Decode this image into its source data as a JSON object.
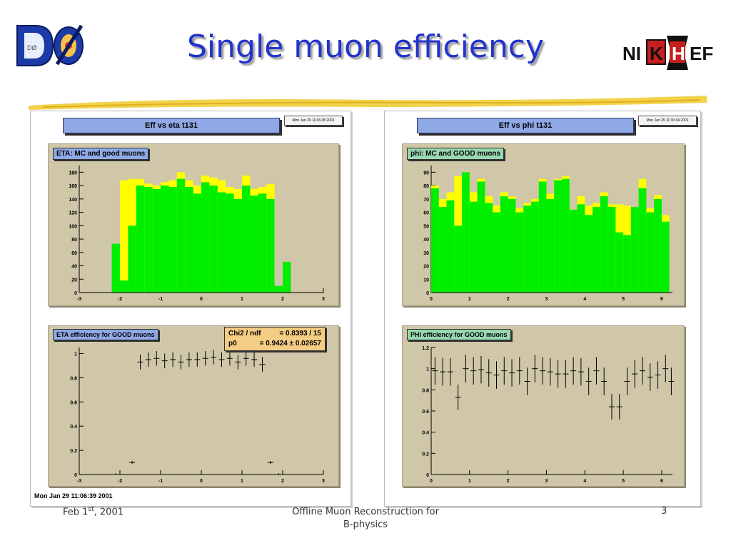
{
  "slide": {
    "title": "Single muon efficiency",
    "logo_left": "DØ",
    "logo_right": "NIKHEF",
    "footer": {
      "date_main": "Feb 1",
      "date_sup": "st",
      "date_year": ", 2001",
      "center_line1": "Offline Muon Reconstruction for",
      "center_line2": "B-physics",
      "page": "3"
    }
  },
  "canvas_left": {
    "header": "Eff vs eta t131",
    "date_label": "Mon Jan 29 11:06:38 2001",
    "timestamp": "Mon Jan 29 11:06:39 2001"
  },
  "canvas_right": {
    "header": "Eff vs phi t131",
    "date_label": "Mon Jan 29 11:30:34 2001"
  },
  "fit": {
    "chi2_label": "Chi2 / ndf",
    "chi2_value": "= 0.8393 / 15",
    "p0_label": "p0",
    "p0_value": "= 0.9424 ± 0.02657"
  },
  "colors": {
    "mc_fill": "#ffff00",
    "good_fill": "#00ee00",
    "pad_bg": "#cfc7a8",
    "title_blue": "#2233cc"
  },
  "chart_data": [
    {
      "type": "bar",
      "title": "ETA: MC and good muons",
      "xlim": [
        -3,
        3
      ],
      "ylim": [
        0,
        190
      ],
      "xticks": [
        -3,
        -2,
        -1,
        0,
        1,
        2,
        3
      ],
      "yticks": [
        0,
        20,
        40,
        60,
        80,
        100,
        120,
        140,
        160,
        180
      ],
      "bin_edges": [
        -2.2,
        -2.0,
        -1.8,
        -1.6,
        -1.4,
        -1.2,
        -1.0,
        -0.8,
        -0.6,
        -0.4,
        -0.2,
        0.0,
        0.2,
        0.4,
        0.6,
        0.8,
        1.0,
        1.2,
        1.4,
        1.6,
        1.8,
        2.0,
        2.2
      ],
      "series": [
        {
          "name": "MC",
          "color": "#ffff00",
          "values": [
            0,
            168,
            170,
            170,
            163,
            160,
            165,
            168,
            180,
            168,
            160,
            175,
            172,
            168,
            158,
            155,
            175,
            155,
            158,
            162,
            0,
            0
          ]
        },
        {
          "name": "GOOD",
          "color": "#00ee00",
          "values": [
            73,
            18,
            100,
            160,
            158,
            155,
            160,
            158,
            170,
            158,
            148,
            165,
            160,
            150,
            148,
            140,
            160,
            145,
            148,
            140,
            10,
            46
          ]
        }
      ]
    },
    {
      "type": "bar",
      "title": "phi: MC and GOOD muons",
      "xlim": [
        0,
        6.28
      ],
      "ylim": [
        0,
        95
      ],
      "xticks": [
        0,
        1,
        2,
        3,
        4,
        5,
        6
      ],
      "yticks": [
        0,
        10,
        20,
        30,
        40,
        50,
        60,
        70,
        80,
        90
      ],
      "bin_edges": [
        0.0,
        0.2,
        0.4,
        0.6,
        0.8,
        1.0,
        1.2,
        1.4,
        1.6,
        1.8,
        2.0,
        2.2,
        2.4,
        2.6,
        2.8,
        3.0,
        3.2,
        3.4,
        3.6,
        3.8,
        4.0,
        4.2,
        4.4,
        4.6,
        4.8,
        5.0,
        5.2,
        5.4,
        5.6,
        5.8,
        6.0,
        6.2
      ],
      "series": [
        {
          "name": "MC",
          "color": "#ffff00",
          "values": [
            80,
            70,
            75,
            87,
            90,
            75,
            85,
            72,
            65,
            75,
            72,
            63,
            67,
            70,
            85,
            74,
            85,
            87,
            62,
            72,
            65,
            67,
            75,
            66,
            66,
            65,
            64,
            85,
            63,
            73,
            58
          ]
        },
        {
          "name": "GOOD",
          "color": "#00ee00",
          "values": [
            78,
            64,
            69,
            50,
            90,
            68,
            83,
            67,
            60,
            72,
            70,
            60,
            65,
            68,
            83,
            70,
            84,
            85,
            62,
            66,
            58,
            64,
            72,
            64,
            45,
            43,
            64,
            78,
            60,
            70,
            53
          ]
        }
      ]
    },
    {
      "type": "scatter",
      "title": "ETA efficiency for GOOD muons",
      "xlim": [
        -3,
        3
      ],
      "ylim": [
        0,
        1.05
      ],
      "xticks": [
        -3,
        -2,
        -1,
        0,
        1,
        2,
        3
      ],
      "yticks": [
        0,
        0.2,
        0.4,
        0.6,
        0.8,
        1
      ],
      "points": [
        {
          "x": -2.1,
          "y": 0.0,
          "err": 0.0
        },
        {
          "x": -1.7,
          "y": 0.1,
          "err": 0.0
        },
        {
          "x": -1.5,
          "y": 0.93,
          "err": 0.06
        },
        {
          "x": -1.3,
          "y": 0.95,
          "err": 0.06
        },
        {
          "x": -1.1,
          "y": 0.96,
          "err": 0.06
        },
        {
          "x": -0.9,
          "y": 0.94,
          "err": 0.06
        },
        {
          "x": -0.7,
          "y": 0.95,
          "err": 0.06
        },
        {
          "x": -0.5,
          "y": 0.93,
          "err": 0.06
        },
        {
          "x": -0.3,
          "y": 0.95,
          "err": 0.06
        },
        {
          "x": -0.1,
          "y": 0.95,
          "err": 0.06
        },
        {
          "x": 0.1,
          "y": 0.96,
          "err": 0.06
        },
        {
          "x": 0.3,
          "y": 0.97,
          "err": 0.06
        },
        {
          "x": 0.5,
          "y": 0.95,
          "err": 0.06
        },
        {
          "x": 0.7,
          "y": 0.96,
          "err": 0.06
        },
        {
          "x": 0.9,
          "y": 0.93,
          "err": 0.06
        },
        {
          "x": 1.1,
          "y": 0.96,
          "err": 0.06
        },
        {
          "x": 1.3,
          "y": 0.95,
          "err": 0.06
        },
        {
          "x": 1.5,
          "y": 0.91,
          "err": 0.06
        },
        {
          "x": 1.7,
          "y": 0.1,
          "err": 0.0
        },
        {
          "x": 1.9,
          "y": 0.0,
          "err": 0.0
        }
      ]
    },
    {
      "type": "scatter",
      "title": "PHI efficiency for GOOD muons",
      "xlim": [
        0,
        6.28
      ],
      "ylim": [
        0,
        1.2
      ],
      "xticks": [
        0,
        1,
        2,
        3,
        4,
        5,
        6
      ],
      "yticks": [
        0,
        0.2,
        0.4,
        0.6,
        0.8,
        1,
        1.2
      ],
      "points": [
        {
          "x": 0.1,
          "y": 0.98,
          "err": 0.13
        },
        {
          "x": 0.3,
          "y": 0.97,
          "err": 0.13
        },
        {
          "x": 0.5,
          "y": 0.97,
          "err": 0.13
        },
        {
          "x": 0.7,
          "y": 0.73,
          "err": 0.12
        },
        {
          "x": 0.9,
          "y": 1.0,
          "err": 0.13
        },
        {
          "x": 1.1,
          "y": 0.98,
          "err": 0.13
        },
        {
          "x": 1.3,
          "y": 0.99,
          "err": 0.13
        },
        {
          "x": 1.5,
          "y": 0.96,
          "err": 0.13
        },
        {
          "x": 1.7,
          "y": 0.94,
          "err": 0.13
        },
        {
          "x": 1.9,
          "y": 0.98,
          "err": 0.13
        },
        {
          "x": 2.1,
          "y": 0.96,
          "err": 0.13
        },
        {
          "x": 2.3,
          "y": 0.98,
          "err": 0.13
        },
        {
          "x": 2.5,
          "y": 0.88,
          "err": 0.13
        },
        {
          "x": 2.7,
          "y": 1.0,
          "err": 0.13
        },
        {
          "x": 2.9,
          "y": 0.98,
          "err": 0.13
        },
        {
          "x": 3.1,
          "y": 0.97,
          "err": 0.13
        },
        {
          "x": 3.3,
          "y": 0.95,
          "err": 0.13
        },
        {
          "x": 3.5,
          "y": 0.95,
          "err": 0.13
        },
        {
          "x": 3.7,
          "y": 0.98,
          "err": 0.13
        },
        {
          "x": 3.9,
          "y": 0.97,
          "err": 0.13
        },
        {
          "x": 4.1,
          "y": 0.88,
          "err": 0.13
        },
        {
          "x": 4.3,
          "y": 0.98,
          "err": 0.13
        },
        {
          "x": 4.5,
          "y": 0.88,
          "err": 0.13
        },
        {
          "x": 4.7,
          "y": 0.64,
          "err": 0.12
        },
        {
          "x": 4.9,
          "y": 0.64,
          "err": 0.12
        },
        {
          "x": 5.1,
          "y": 0.88,
          "err": 0.13
        },
        {
          "x": 5.3,
          "y": 0.95,
          "err": 0.13
        },
        {
          "x": 5.5,
          "y": 0.98,
          "err": 0.13
        },
        {
          "x": 5.7,
          "y": 0.92,
          "err": 0.13
        },
        {
          "x": 5.9,
          "y": 0.94,
          "err": 0.13
        },
        {
          "x": 6.1,
          "y": 1.0,
          "err": 0.13
        },
        {
          "x": 6.25,
          "y": 0.88,
          "err": 0.13
        }
      ]
    }
  ]
}
